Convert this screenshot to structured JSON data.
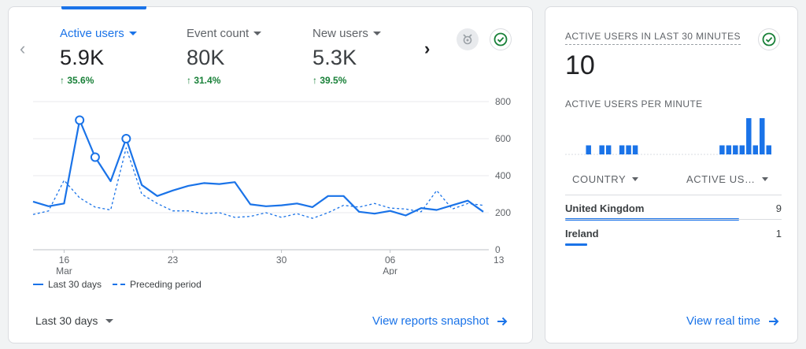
{
  "overview": {
    "metrics": [
      {
        "label": "Active users",
        "value": "5.9K",
        "change": "↑ 35.6%"
      },
      {
        "label": "Event count",
        "value": "80K",
        "change": "↑ 31.4%"
      },
      {
        "label": "New users",
        "value": "5.3K",
        "change": "↑ 39.5%"
      }
    ],
    "prev_icon": "chevron-left-icon",
    "next_icon": "chevron-right-icon",
    "insights_icon": "insights-icon",
    "check_icon": "check-circle-icon",
    "legend": {
      "current": "Last 30 days",
      "previous": "Preceding period"
    },
    "date_range": "Last 30 days",
    "snapshot_link": "View reports snapshot",
    "accent_color": "#1a73e8",
    "positive_color": "#188038"
  },
  "chart_data": {
    "type": "line",
    "title": "",
    "xlabel": "",
    "ylabel": "",
    "ylim": [
      0,
      800
    ],
    "yticks": [
      0,
      200,
      400,
      600,
      800
    ],
    "x_tick_labels": [
      {
        "day": 2,
        "label": "16",
        "sublabel": "Mar"
      },
      {
        "day": 9,
        "label": "23",
        "sublabel": ""
      },
      {
        "day": 16,
        "label": "30",
        "sublabel": ""
      },
      {
        "day": 23,
        "label": "06",
        "sublabel": "Apr"
      },
      {
        "day": 30,
        "label": "13",
        "sublabel": ""
      }
    ],
    "grid": true,
    "legend_position": "bottom-left",
    "series": [
      {
        "name": "Last 30 days",
        "style": "solid",
        "values": [
          260,
          235,
          250,
          700,
          500,
          370,
          600,
          350,
          290,
          320,
          345,
          360,
          355,
          365,
          245,
          235,
          240,
          250,
          230,
          290,
          290,
          205,
          195,
          210,
          185,
          225,
          215,
          240,
          265,
          205
        ],
        "markers": [
          3,
          4,
          6
        ]
      },
      {
        "name": "Preceding period",
        "style": "dashed",
        "values": [
          190,
          210,
          375,
          280,
          230,
          215,
          550,
          300,
          250,
          210,
          210,
          195,
          200,
          175,
          180,
          200,
          175,
          195,
          170,
          200,
          240,
          230,
          250,
          225,
          220,
          205,
          320,
          220,
          250,
          240
        ]
      }
    ]
  },
  "realtime": {
    "title": "ACTIVE USERS IN LAST 30 MINUTES",
    "count": "10",
    "per_minute_label": "ACTIVE USERS PER MINUTE",
    "per_minute": [
      0,
      0,
      0,
      1,
      0,
      1,
      1,
      0,
      1,
      1,
      1,
      0,
      0,
      0,
      0,
      0,
      0,
      0,
      0,
      0,
      0,
      0,
      0,
      1,
      1,
      1,
      1,
      4,
      1,
      4,
      1
    ],
    "per_minute_max": 4,
    "table_headers": {
      "country": "COUNTRY",
      "users": "ACTIVE US…"
    },
    "rows": [
      {
        "country": "United Kingdom",
        "users": "9",
        "share": 0.9
      },
      {
        "country": "Ireland",
        "users": "1",
        "share": 0.1
      }
    ],
    "link": "View real time"
  }
}
